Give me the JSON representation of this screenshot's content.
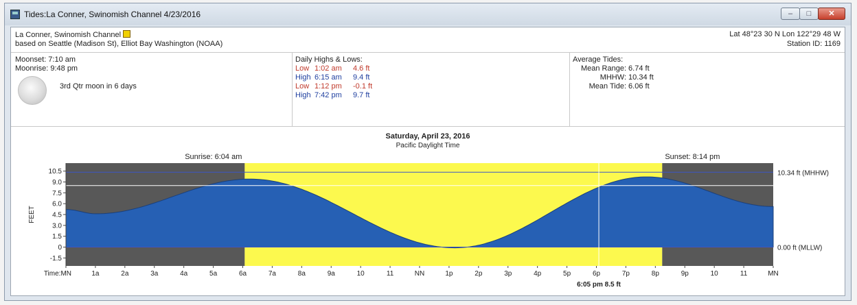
{
  "window": {
    "title": "Tides:La Conner, Swinomish Channel 4/23/2016",
    "controls": {
      "minimize": "–",
      "maximize": "□",
      "close": "✕"
    }
  },
  "header": {
    "station_name": "La Conner, Swinomish Channel",
    "basis": "based on Seattle (Madison St), Elliot Bay Washington (NOAA)",
    "latlon": "Lat 48°23 30 N  Lon 122°29 48 W",
    "station_id": "Station ID: 1169"
  },
  "moon": {
    "moonset": "Moonset: 7:10 am",
    "moonrise": "Moonrise: 9:48 pm",
    "phase_text": "3rd Qtr moon in 6 days"
  },
  "hilo": {
    "title": "Daily Highs & Lows:",
    "rows": [
      {
        "type": "Low",
        "time": "1:02 am",
        "height": "4.6 ft",
        "color": "#c0392b"
      },
      {
        "type": "High",
        "time": "6:15 am",
        "height": "9.4 ft",
        "color": "#1f3f9f"
      },
      {
        "type": "Low",
        "time": "1:12 pm",
        "height": "-0.1 ft",
        "color": "#c0392b"
      },
      {
        "type": "High",
        "time": "7:42 pm",
        "height": "9.7 ft",
        "color": "#1f3f9f"
      }
    ]
  },
  "average_tides": {
    "title": "Average Tides:",
    "rows": [
      {
        "label": "Mean Range:",
        "value": "6.74 ft"
      },
      {
        "label": "MHHW:",
        "value": "10.34 ft"
      },
      {
        "label": "Mean Tide:",
        "value": "6.06 ft"
      }
    ]
  },
  "chart_data": {
    "type": "area",
    "title": "Saturday, April 23, 2016",
    "subtitle": "Pacific Daylight Time",
    "ylabel": "FEET",
    "ylim": [
      -2.6,
      11.6
    ],
    "xlim": [
      0,
      24
    ],
    "y_ticks": [
      10.5,
      9.0,
      7.5,
      6.0,
      4.5,
      3.0,
      1.5,
      0,
      -1.5
    ],
    "y_tick_labels": [
      "10.5",
      "9.0",
      "7.5",
      "6.0",
      "4.5",
      "3.0",
      "1.5",
      "0",
      "-1.5"
    ],
    "x_tick_labels": [
      "Time:MN",
      "1a",
      "2a",
      "3a",
      "4a",
      "5a",
      "6a",
      "7a",
      "8a",
      "9a",
      "10",
      "11",
      "NN",
      "1p",
      "2p",
      "3p",
      "4p",
      "5p",
      "6p",
      "7p",
      "8p",
      "9p",
      "10",
      "11",
      "MN"
    ],
    "sunrise": {
      "hour": 6.067,
      "label": "Sunrise: 6:04 am"
    },
    "sunset": {
      "hour": 20.233,
      "label": "Sunset: 8:14 pm"
    },
    "reference_lines": [
      {
        "value": 10.34,
        "label": "10.34 ft (MHHW)"
      },
      {
        "value": 0,
        "label": "0.00 ft (MLLW)"
      }
    ],
    "mean_tide_line": 8.5,
    "cursor": {
      "hour": 18.083,
      "label": "6:05 pm 8.5 ft"
    },
    "extremes": [
      {
        "hour": 0,
        "value": 5.2
      },
      {
        "hour": 1.033,
        "value": 4.6
      },
      {
        "hour": 6.25,
        "value": 9.4
      },
      {
        "hour": 13.2,
        "value": -0.1
      },
      {
        "hour": 19.7,
        "value": 9.7
      },
      {
        "hour": 24,
        "value": 5.6
      }
    ],
    "colors": {
      "night": "#585858",
      "day": "#fcf94e",
      "water": "#2660b4",
      "ref_line": "#3a55c8"
    }
  }
}
